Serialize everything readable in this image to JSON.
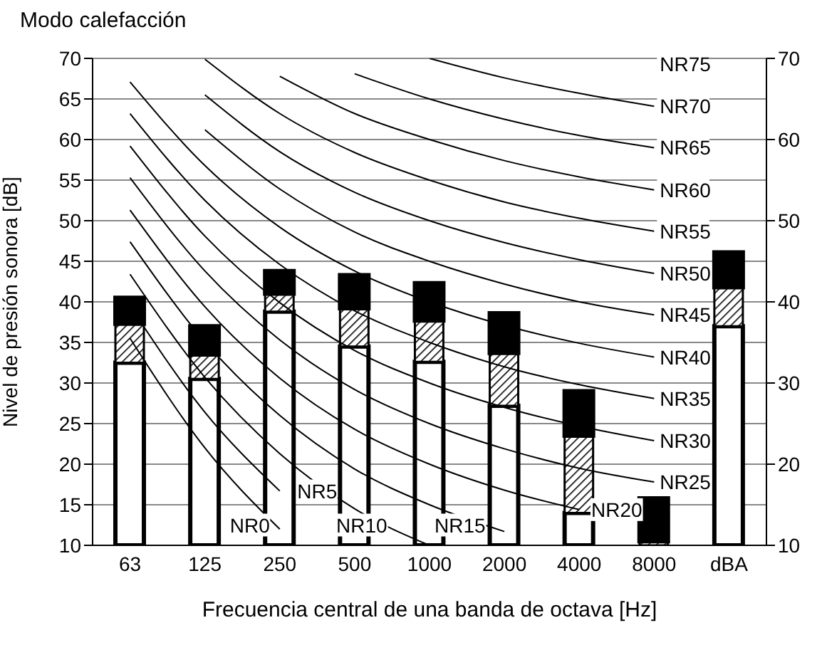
{
  "chart_data": {
    "type": "bar",
    "title": "Modo calefacción",
    "xlabel": "Frecuencia central de una banda de octava [Hz]",
    "ylabel": "Nivel de presión sonora [dB]",
    "categories": [
      "63",
      "125",
      "250",
      "500",
      "1000",
      "2000",
      "4000",
      "8000",
      "dBA"
    ],
    "series": [
      {
        "color": "#ffffff",
        "base": [
          10,
          10,
          10,
          10,
          10,
          10,
          10,
          null,
          10
        ],
        "values": [
          22.5,
          20.5,
          28.8,
          24.5,
          22.6,
          17.2,
          4,
          null,
          27
        ]
      },
      {
        "color": "#000000",
        "base": [
          32.5,
          30.5,
          38.8,
          34.5,
          32.6,
          27.2,
          14,
          10,
          37
        ],
        "values": [
          4.8,
          3,
          2.2,
          4.7,
          5.1,
          6.5,
          9.5,
          0.5,
          4.8
        ]
      },
      {
        "color": "#000000",
        "base": [
          37.3,
          33.5,
          41,
          39.2,
          37.7,
          33.7,
          23.5,
          10.5,
          41.8
        ],
        "values": [
          3.2,
          3.5,
          2.8,
          4.1,
          4.6,
          4.9,
          5.5,
          5.3,
          4.3
        ]
      },
      {
        "type": "line",
        "name": "NR0",
        "color": "#000000",
        "values": [
          35.5,
          22,
          12,
          null,
          null,
          null,
          null,
          null,
          null
        ]
      },
      {
        "type": "line",
        "name": "NR5",
        "color": "#000000",
        "values": [
          39.5,
          26.4,
          16.7,
          null,
          null,
          null,
          null,
          null,
          null
        ]
      },
      {
        "type": "line",
        "name": "NR10",
        "color": "#000000",
        "values": [
          43.4,
          30.7,
          21.3,
          14.5,
          10,
          null,
          null,
          null,
          null
        ]
      },
      {
        "type": "line",
        "name": "NR15",
        "color": "#000000",
        "values": [
          47.4,
          35.1,
          26,
          19.4,
          15,
          11.7,
          null,
          null,
          null
        ]
      },
      {
        "type": "line",
        "name": "NR20",
        "color": "#000000",
        "values": [
          51.3,
          39.4,
          30.6,
          24.3,
          20,
          16.8,
          14.4,
          null,
          null
        ]
      },
      {
        "type": "line",
        "name": "NR25",
        "color": "#000000",
        "values": [
          55.3,
          43.8,
          35.3,
          29.2,
          25,
          21.9,
          19.5,
          17.8,
          null
        ]
      },
      {
        "type": "line",
        "name": "NR30",
        "color": "#000000",
        "values": [
          59.2,
          48.1,
          39.9,
          34,
          30,
          27,
          24.7,
          22.9,
          null
        ]
      },
      {
        "type": "line",
        "name": "NR35",
        "color": "#000000",
        "values": [
          63.2,
          52.5,
          44.6,
          38.9,
          35,
          32,
          29.8,
          28.1,
          null
        ]
      },
      {
        "type": "line",
        "name": "NR40",
        "color": "#000000",
        "values": [
          67.1,
          56.8,
          49.2,
          43.8,
          40,
          37.1,
          34.9,
          33.2,
          null
        ]
      },
      {
        "type": "line",
        "name": "NR45",
        "color": "#000000",
        "values": [
          null,
          61.2,
          53.9,
          48.6,
          45,
          42.2,
          40,
          38.4,
          null
        ]
      },
      {
        "type": "line",
        "name": "NR50",
        "color": "#000000",
        "values": [
          null,
          65.5,
          58.5,
          53.5,
          50,
          47.3,
          45.2,
          43.5,
          null
        ]
      },
      {
        "type": "line",
        "name": "NR55",
        "color": "#000000",
        "values": [
          null,
          69.9,
          63.2,
          58.4,
          55,
          52.3,
          50.3,
          48.7,
          null
        ]
      },
      {
        "type": "line",
        "name": "NR60",
        "color": "#000000",
        "values": [
          null,
          null,
          67.8,
          63.2,
          60,
          57.4,
          55.4,
          53.8,
          null
        ]
      },
      {
        "type": "line",
        "name": "NR65",
        "color": "#000000",
        "values": [
          null,
          null,
          null,
          68.1,
          65,
          62.5,
          60.5,
          59,
          null
        ]
      },
      {
        "type": "line",
        "name": "NR70",
        "color": "#000000",
        "values": [
          null,
          null,
          null,
          null,
          70,
          67.6,
          65.7,
          64.1,
          null
        ]
      }
    ],
    "annotations": [
      "NR75"
    ],
    "ylim": [
      10,
      70
    ],
    "yticks": [
      10,
      15,
      20,
      25,
      30,
      35,
      40,
      45,
      50,
      55,
      60,
      65,
      70
    ],
    "y2lim": [
      10,
      70
    ],
    "y2ticks": [
      10,
      20,
      30,
      40,
      50,
      60,
      70
    ],
    "grid": "y",
    "marker": "none",
    "line_style": "solid"
  }
}
